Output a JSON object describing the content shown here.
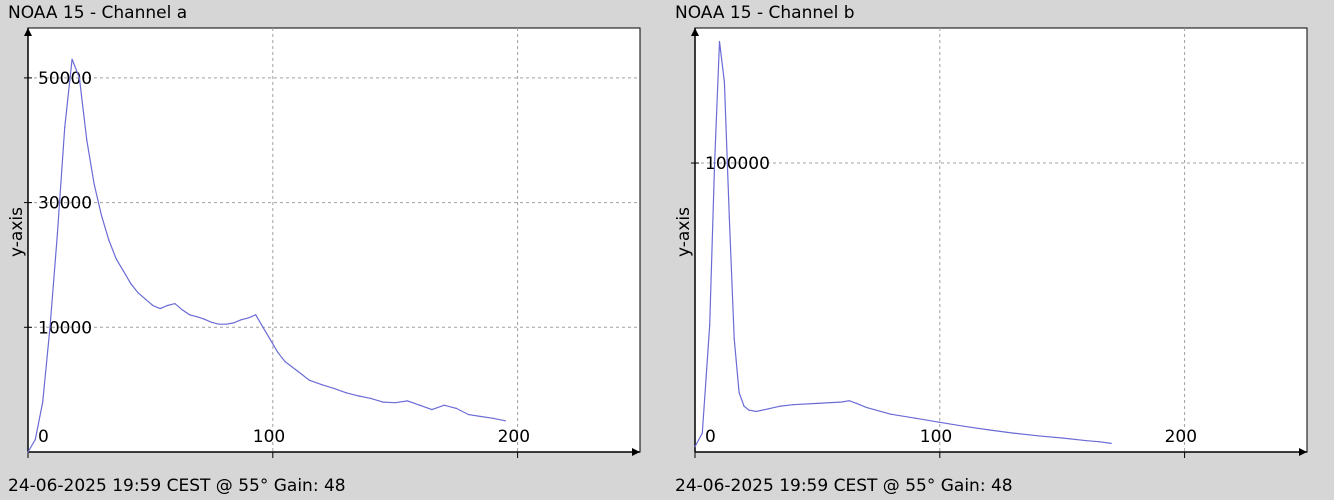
{
  "chart_data": [
    {
      "type": "line",
      "title": "NOAA 15 - Channel a",
      "footer": "24-06-2025 19:59 CEST @ 55° Gain: 48",
      "ylabel": "y-axis",
      "xlabel": "",
      "xlim": [
        0,
        250
      ],
      "ylim": [
        -10000,
        58000
      ],
      "grid": true,
      "x_ticks": [
        0,
        100,
        200
      ],
      "y_ticks": [
        10000,
        30000,
        50000
      ],
      "line_color": "#6b6bd6",
      "series": [
        {
          "x": [
            0,
            3,
            6,
            9,
            12,
            15,
            18,
            21,
            24,
            27,
            30,
            33,
            36,
            39,
            42,
            45,
            48,
            51,
            54,
            57,
            60,
            63,
            66,
            69,
            72,
            75,
            78,
            81,
            84,
            87,
            90,
            93,
            96,
            99,
            102,
            105,
            110,
            115,
            120,
            125,
            130,
            135,
            140,
            145,
            150,
            155,
            160,
            165,
            170,
            175,
            180,
            185,
            190,
            195
          ],
          "y": [
            -10000,
            -8000,
            -2000,
            10000,
            25000,
            42000,
            53000,
            50000,
            40000,
            33000,
            28000,
            24000,
            21000,
            19000,
            17000,
            15500,
            14500,
            13500,
            13000,
            13500,
            13800,
            12800,
            12000,
            11700,
            11300,
            10800,
            10500,
            10500,
            10700,
            11200,
            11500,
            12000,
            10000,
            8000,
            6000,
            4500,
            3000,
            1500,
            800,
            200,
            -500,
            -1000,
            -1400,
            -2000,
            -2100,
            -1800,
            -2500,
            -3200,
            -2500,
            -3000,
            -4000,
            -4300,
            -4600,
            -5000
          ]
        }
      ]
    },
    {
      "type": "line",
      "title": "NOAA 15 - Channel b",
      "footer": "24-06-2025 19:59 CEST @ 55° Gain: 48",
      "ylabel": "y-axis",
      "xlabel": "",
      "xlim": [
        0,
        250
      ],
      "ylim": [
        -7000,
        150000
      ],
      "grid": true,
      "x_ticks": [
        0,
        100,
        200
      ],
      "y_ticks": [
        100000
      ],
      "line_color": "#6b6bd6",
      "series": [
        {
          "x": [
            0,
            3,
            6,
            8,
            10,
            12,
            14,
            16,
            18,
            20,
            22,
            25,
            30,
            35,
            40,
            50,
            60,
            63,
            66,
            70,
            80,
            90,
            100,
            110,
            120,
            130,
            140,
            150,
            160,
            165,
            170
          ],
          "y": [
            -5000,
            0,
            40000,
            100000,
            145000,
            130000,
            80000,
            35000,
            15000,
            10000,
            8500,
            8000,
            9000,
            10000,
            10500,
            11000,
            11500,
            12000,
            11000,
            9500,
            7000,
            5500,
            4000,
            2500,
            1200,
            0,
            -1000,
            -1800,
            -2800,
            -3200,
            -3800
          ]
        }
      ]
    }
  ]
}
